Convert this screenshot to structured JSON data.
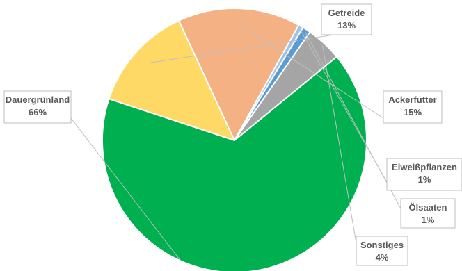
{
  "chart_data": {
    "type": "pie",
    "title": "",
    "slices": [
      {
        "label": "Getreide",
        "value_label": "13%",
        "value": 13,
        "color": "#ffd966"
      },
      {
        "label": "Ackerfutter",
        "value_label": "15%",
        "value": 15,
        "color": "#f4b183"
      },
      {
        "label": "Eiweißpflanzen",
        "value_label": "1%",
        "value": 0.6,
        "color": "#9dc3e6"
      },
      {
        "label": "Ölsaaten",
        "value_label": "1%",
        "value": 1.0,
        "color": "#5b9bd5"
      },
      {
        "label": "Sonstiges",
        "value_label": "4%",
        "value": 4.4,
        "color": "#a5a5a5"
      },
      {
        "label": "Dauergrünland",
        "value_label": "66%",
        "value": 66,
        "color": "#00b050"
      }
    ],
    "data_labels": "outside with leader lines"
  }
}
